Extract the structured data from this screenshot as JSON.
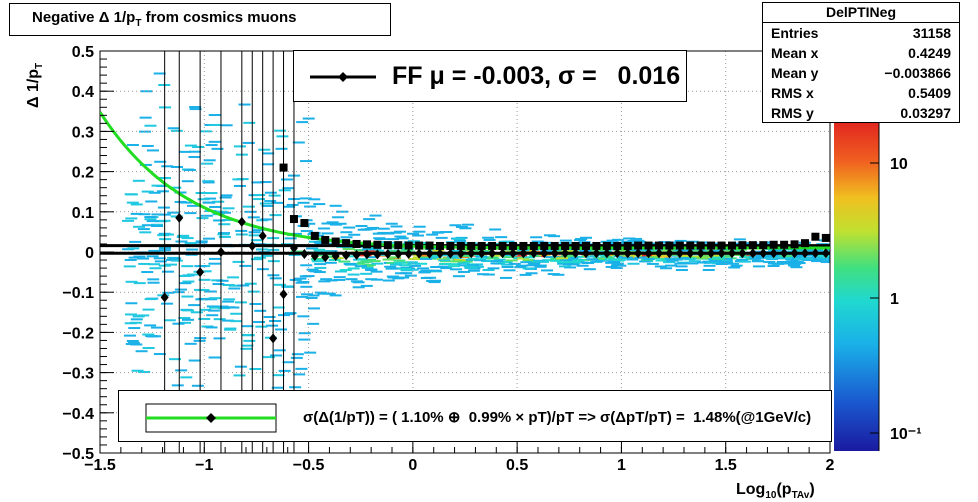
{
  "title": "Negative Δ 1/p",
  "title_sub": "T",
  "title_rest": " from cosmics muons",
  "ylabel": "Δ 1/p",
  "ylabel_sub": "T",
  "xlabel": "Log",
  "xlabel_sub1": "10",
  "xlabel_mid": "(p",
  "xlabel_sub2": "TAv",
  "xlabel_end": ")",
  "stats": {
    "name": "DelPTINeg",
    "rows": [
      {
        "label": "Entries",
        "value": "31158"
      },
      {
        "label": "Mean x",
        "value": "0.4249"
      },
      {
        "label": "Mean y",
        "value": "−0.003866"
      },
      {
        "label": "RMS x",
        "value": "0.5409"
      },
      {
        "label": "RMS y",
        "value": "0.03297"
      }
    ]
  },
  "fit_text": "FF μ = -0.003, σ =   0.016",
  "legend_text": "σ(Δ(1/pT)) = ( 1.10% ⊕  0.99% × pT)/pT => σ(ΔpT/pT) =  1.48%(@1GeV/c)",
  "colors": {
    "fit_curve": "#22dd22",
    "markers": "#000000"
  },
  "chart_data": {
    "type": "scatter",
    "xlim": [
      -1.5,
      2.0
    ],
    "ylim": [
      -0.5,
      0.5
    ],
    "xticks": [
      "−1.5",
      "−1",
      "−0.5",
      "0",
      "0.5",
      "1",
      "1.5",
      "2"
    ],
    "yticks": [
      "−0.5",
      "−0.4",
      "−0.3",
      "−0.2",
      "−0.1",
      "0",
      "0.1",
      "0.2",
      "0.3",
      "0.4",
      "0.5"
    ],
    "grid": true,
    "colorbar_ticks": [
      "10",
      "1",
      "10⁻¹"
    ],
    "profile_means": {
      "x": [
        -1.19,
        -1.12,
        -1.02,
        -0.92,
        -0.82,
        -0.77,
        -0.72,
        -0.67,
        -0.62,
        -0.57,
        -0.52,
        -0.47,
        -0.42,
        -0.37,
        -0.32,
        -0.27,
        -0.22,
        -0.17,
        -0.12,
        -0.07,
        -0.02,
        0.03,
        0.08,
        0.13,
        0.18,
        0.23,
        0.28,
        0.33,
        0.38,
        0.43,
        0.48,
        0.53,
        0.58,
        0.63,
        0.68,
        0.73,
        0.78,
        0.83,
        0.88,
        0.93,
        0.98,
        1.03,
        1.08,
        1.13,
        1.18,
        1.23,
        1.28,
        1.33,
        1.38,
        1.43,
        1.48,
        1.53,
        1.58,
        1.63,
        1.68,
        1.73,
        1.78,
        1.83,
        1.88,
        1.93,
        1.98
      ],
      "y": [
        -0.113,
        0.085,
        -0.05,
        0.0,
        0.075,
        0.015,
        0.04,
        -0.215,
        -0.105,
        0.01,
        -0.005,
        -0.01,
        -0.013,
        -0.01,
        -0.008,
        -0.007,
        -0.006,
        -0.006,
        -0.005,
        -0.005,
        -0.005,
        -0.004,
        -0.004,
        -0.004,
        -0.004,
        -0.004,
        -0.003,
        -0.003,
        -0.003,
        -0.003,
        -0.003,
        -0.003,
        -0.003,
        -0.003,
        -0.003,
        -0.003,
        -0.003,
        -0.003,
        -0.003,
        -0.003,
        -0.003,
        -0.003,
        -0.003,
        -0.003,
        -0.003,
        -0.003,
        -0.003,
        -0.003,
        -0.003,
        -0.003,
        -0.003,
        -0.003,
        -0.003,
        -0.003,
        -0.003,
        -0.003,
        -0.003,
        -0.003,
        -0.003,
        -0.003,
        -0.003
      ]
    },
    "profile_sigma": {
      "x": [
        -0.62,
        -0.57,
        -0.52,
        -0.47,
        -0.42,
        -0.37,
        -0.32,
        -0.27,
        -0.22,
        -0.17,
        -0.12,
        -0.07,
        -0.02,
        0.03,
        0.08,
        0.13,
        0.18,
        0.23,
        0.28,
        0.33,
        0.38,
        0.43,
        0.48,
        0.53,
        0.58,
        0.63,
        0.68,
        0.73,
        0.78,
        0.83,
        0.88,
        0.93,
        0.98,
        1.03,
        1.08,
        1.13,
        1.18,
        1.23,
        1.28,
        1.33,
        1.38,
        1.43,
        1.48,
        1.53,
        1.58,
        1.63,
        1.68,
        1.73,
        1.78,
        1.83,
        1.88,
        1.93,
        1.98
      ],
      "y": [
        0.21,
        0.082,
        0.072,
        0.04,
        0.03,
        0.026,
        0.022,
        0.02,
        0.019,
        0.018,
        0.017,
        0.017,
        0.016,
        0.016,
        0.016,
        0.015,
        0.015,
        0.015,
        0.015,
        0.015,
        0.015,
        0.015,
        0.015,
        0.015,
        0.015,
        0.015,
        0.015,
        0.015,
        0.015,
        0.015,
        0.015,
        0.015,
        0.015,
        0.015,
        0.016,
        0.016,
        0.016,
        0.016,
        0.016,
        0.016,
        0.016,
        0.016,
        0.016,
        0.016,
        0.017,
        0.017,
        0.017,
        0.018,
        0.018,
        0.019,
        0.022,
        0.038,
        0.035
      ]
    },
    "hlines": [
      0.016,
      -0.003
    ],
    "fit_curve": {
      "a_percent": 1.1,
      "b_percent": 0.99
    }
  }
}
